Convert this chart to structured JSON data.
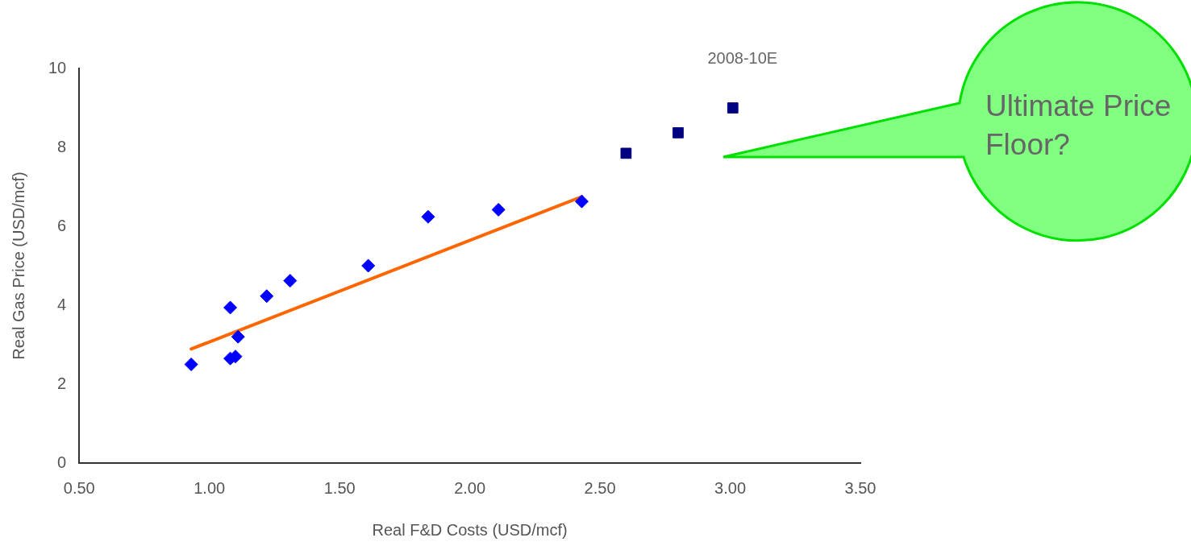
{
  "chart_data": {
    "type": "scatter",
    "xlabel": "Real F&D Costs (USD/mcf)",
    "ylabel": "Real Gas Price (USD/mcf)",
    "xlim": [
      0.5,
      3.5
    ],
    "xticks": [
      {
        "value": 0.5,
        "label": "0.50"
      },
      {
        "value": 1,
        "label": "1.00"
      },
      {
        "value": 1.5,
        "label": "1.50"
      },
      {
        "value": 2,
        "label": "2.00"
      },
      {
        "value": 2.5,
        "label": "2.50"
      },
      {
        "value": 3,
        "label": "3.00"
      },
      {
        "value": 3.5,
        "label": "3.50"
      }
    ],
    "ylim": [
      0,
      10
    ],
    "yticks": [
      0,
      2,
      4,
      6,
      8,
      10
    ],
    "grid": false,
    "legend": false,
    "series": [
      {
        "marker": "diamond",
        "color": "#0000ff",
        "x": [
          0.93,
          1.08,
          1.08,
          1.1,
          1.11,
          1.22,
          1.31,
          1.61,
          1.84,
          2.11,
          2.43
        ],
        "values": [
          2.5,
          3.94,
          2.65,
          2.7,
          3.2,
          4.23,
          4.62,
          5.0,
          6.24,
          6.42,
          6.63
        ]
      },
      {
        "marker": "square",
        "color": "#000080",
        "x": [
          2.6,
          2.8,
          3.01
        ],
        "values": [
          7.85,
          8.37,
          9.0
        ]
      },
      {
        "type": "line",
        "marker": "none",
        "color": "#ff6600",
        "x": [
          0.93,
          2.43
        ],
        "values": [
          2.89,
          6.75
        ]
      }
    ],
    "annotations": [
      "2008-10E",
      "Ultimate Price Floor?"
    ]
  }
}
